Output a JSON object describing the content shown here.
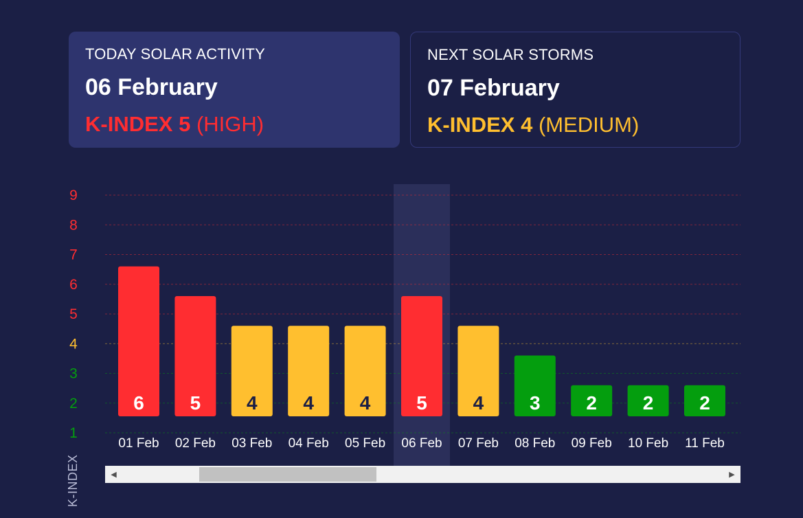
{
  "today": {
    "label": "TODAY SOLAR ACTIVITY",
    "date": "06 February",
    "kindex_label": "K-INDEX 5",
    "level": "(HIGH)"
  },
  "next": {
    "label": "NEXT SOLAR STORMS",
    "date": "07 February",
    "kindex_label": "K-INDEX 4",
    "level": "(MEDIUM)"
  },
  "colors": {
    "high": "#ff2d31",
    "medium": "#ffbf2f",
    "low": "#049e0e",
    "background": "#1b1f45",
    "highlight": "#2b2f5a"
  },
  "chart_data": {
    "type": "bar",
    "categories": [
      "01 Feb",
      "02 Feb",
      "03 Feb",
      "04 Feb",
      "05 Feb",
      "06 Feb",
      "07 Feb",
      "08 Feb",
      "09 Feb",
      "10 Feb",
      "11 Feb"
    ],
    "values": [
      6,
      5,
      4,
      4,
      4,
      5,
      4,
      3,
      2,
      2,
      2
    ],
    "ylabel": "K-INDEX",
    "yticks": [
      1,
      2,
      3,
      4,
      5,
      6,
      7,
      8,
      9
    ],
    "ylim": [
      1,
      9
    ],
    "highlighted_category": "06 Feb",
    "color_bands": {
      "low": [
        1,
        3
      ],
      "medium": [
        4,
        4
      ],
      "high": [
        5,
        9
      ]
    },
    "grid": true,
    "scrollbar": true
  }
}
